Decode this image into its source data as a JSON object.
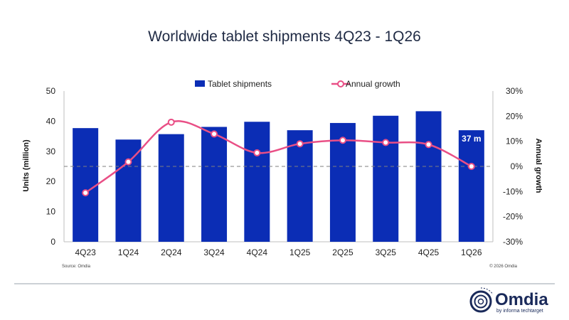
{
  "chart_data": {
    "type": "bar",
    "title": "Worldwide tablet shipments 4Q23 - 1Q26",
    "categories": [
      "4Q23",
      "1Q24",
      "2Q24",
      "3Q24",
      "4Q24",
      "1Q25",
      "2Q25",
      "3Q25",
      "4Q25",
      "1Q26"
    ],
    "series": [
      {
        "name": "Tablet shipments",
        "type": "bar",
        "axis": "left",
        "color": "#0b2db5",
        "values": [
          37.7,
          33.9,
          35.7,
          38.1,
          39.8,
          37.0,
          39.4,
          41.8,
          43.3,
          37.0
        ]
      },
      {
        "name": "Annual growth",
        "type": "line",
        "axis": "right",
        "color": "#e94f86",
        "smooth": true,
        "marker": "open-circle",
        "values": [
          -10.5,
          1.8,
          17.6,
          12.9,
          5.4,
          9.0,
          10.4,
          9.5,
          8.7,
          0.0
        ]
      }
    ],
    "ylabel": "Units (million)",
    "ylim": [
      0,
      50
    ],
    "yticks": [
      "50",
      "40",
      "30",
      "20",
      "10",
      "0"
    ],
    "y2label": "Annual growth",
    "y2lim": [
      -30,
      30
    ],
    "y2ticks": [
      "30%",
      "20%",
      "10%",
      "0%",
      "-10%",
      "-20%",
      "-30%"
    ],
    "reference_line": {
      "axis": "right",
      "value": 0,
      "style": "dashed"
    },
    "legend": {
      "placement": "top-center",
      "entries": [
        "Tablet shipments",
        "Annual growth"
      ]
    },
    "data_labels": [
      {
        "category": "1Q26",
        "text": "37 m"
      }
    ],
    "grid": false
  },
  "footer": {
    "source": "Source: Omdia",
    "copyright": "© 2026 Omdia"
  },
  "logo": {
    "name": "Omdia",
    "tagline": "by informa techtarget",
    "icon": "omdia-ring-logo-icon"
  },
  "colors": {
    "title": "#1f2a44",
    "bar": "#0b2db5",
    "line": "#e94f86",
    "divider": "#9aa3ad"
  }
}
